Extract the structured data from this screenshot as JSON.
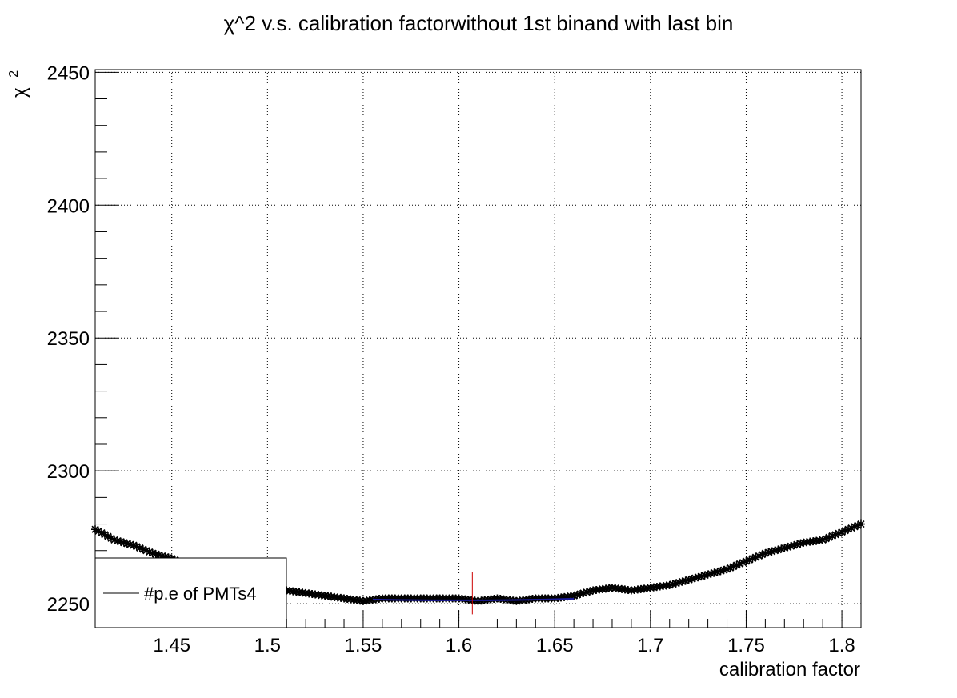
{
  "chart_data": {
    "type": "scatter",
    "title": "χ^2 v.s. calibration factorwithout 1st binand with last bin",
    "xlabel": "calibration factor",
    "ylabel_base": "χ",
    "ylabel_sup": "2",
    "xlim": [
      1.41,
      1.81
    ],
    "ylim": [
      2241,
      2451
    ],
    "xticks": [
      1.45,
      1.5,
      1.55,
      1.6,
      1.65,
      1.7,
      1.75,
      1.8
    ],
    "xtick_labels": [
      "1.45",
      "1.5",
      "1.55",
      "1.6",
      "1.65",
      "1.7",
      "1.75",
      "1.8"
    ],
    "yticks": [
      2250,
      2300,
      2350,
      2400,
      2450
    ],
    "ytick_labels": [
      "2250",
      "2300",
      "2350",
      "2400",
      "2450"
    ],
    "grid": true,
    "legend_position": "bottom-left",
    "colors": {
      "points": "#000000",
      "fit": "#1a1a99",
      "minimum_marker": "#cc0000"
    },
    "series": [
      {
        "name": "#p.e of PMTs4",
        "x": [
          1.41,
          1.42,
          1.43,
          1.44,
          1.45,
          1.46,
          1.47,
          1.48,
          1.49,
          1.5,
          1.51,
          1.52,
          1.53,
          1.54,
          1.55,
          1.56,
          1.57,
          1.58,
          1.59,
          1.6,
          1.61,
          1.62,
          1.63,
          1.64,
          1.65,
          1.66,
          1.67,
          1.68,
          1.69,
          1.7,
          1.71,
          1.72,
          1.73,
          1.74,
          1.75,
          1.76,
          1.77,
          1.78,
          1.79,
          1.8,
          1.81
        ],
        "y": [
          2278,
          2274,
          2272,
          2269,
          2267,
          2264,
          2261,
          2259,
          2257,
          2256,
          2255,
          2254,
          2253,
          2252,
          2251,
          2252,
          2252,
          2252,
          2252,
          2252,
          2251,
          2252,
          2251,
          2252,
          2252,
          2253,
          2255,
          2256,
          2255,
          2256,
          2257,
          2259,
          2261,
          2263,
          2266,
          2269,
          2271,
          2273,
          2274,
          2277,
          2280
        ]
      }
    ],
    "fit": {
      "x": [
        1.555,
        1.57,
        1.585,
        1.6,
        1.615,
        1.63,
        1.645,
        1.66
      ],
      "y": [
        2251.6,
        2251.4,
        2251.3,
        2251.3,
        2251.3,
        2251.4,
        2251.6,
        2251.9
      ]
    },
    "minimum_marker": {
      "x": 1.607,
      "y_low": 2246,
      "y_high": 2262
    }
  }
}
